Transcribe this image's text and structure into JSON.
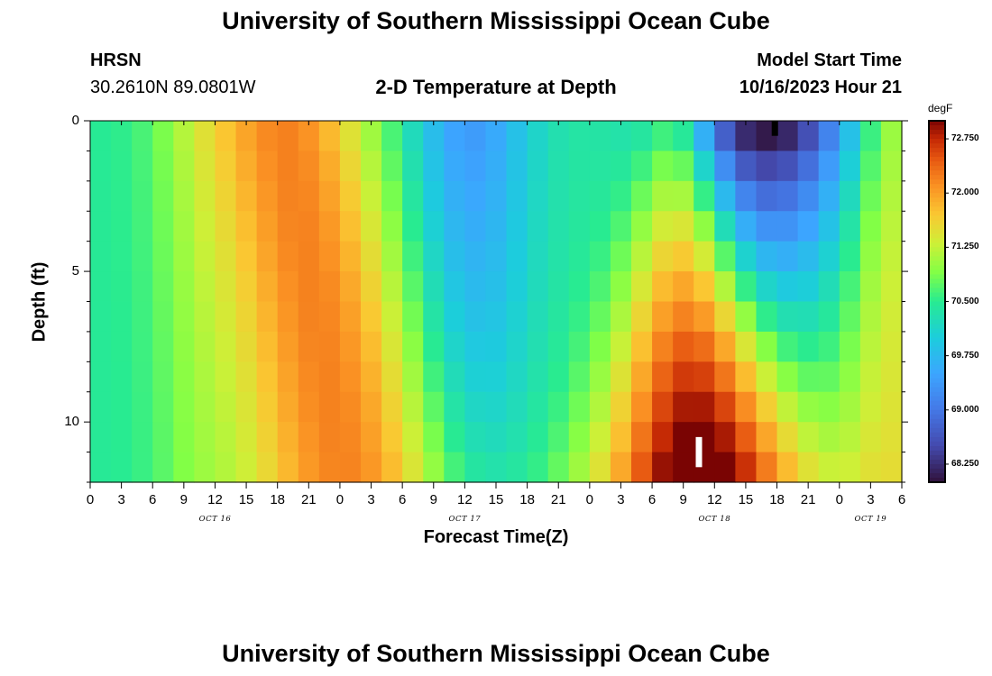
{
  "header": {
    "title": "University of Southern Mississippi Ocean Cube",
    "station": "HRSN",
    "coordinates": "30.2610N  89.0801W",
    "chart_title": "2-D Temperature at Depth",
    "model_start_label": "Model Start Time",
    "model_start_value": "10/16/2023 Hour 21",
    "footer_title": "University of Southern Mississippi Ocean Cube"
  },
  "chart_data": {
    "type": "heatmap",
    "title": "2-D Temperature at Depth",
    "xlabel": "Forecast Time(Z)",
    "ylabel": "Depth (ft)",
    "x_range_hours": [
      0,
      78
    ],
    "y_range_ft": [
      0,
      12
    ],
    "x_ticks": [
      {
        "h": 0,
        "label": "0"
      },
      {
        "h": 3,
        "label": "3"
      },
      {
        "h": 6,
        "label": "6"
      },
      {
        "h": 9,
        "label": "9"
      },
      {
        "h": 12,
        "label": "12"
      },
      {
        "h": 15,
        "label": "15"
      },
      {
        "h": 18,
        "label": "18"
      },
      {
        "h": 21,
        "label": "21"
      },
      {
        "h": 24,
        "label": "0"
      },
      {
        "h": 27,
        "label": "3"
      },
      {
        "h": 30,
        "label": "6"
      },
      {
        "h": 33,
        "label": "9"
      },
      {
        "h": 36,
        "label": "12"
      },
      {
        "h": 39,
        "label": "15"
      },
      {
        "h": 42,
        "label": "18"
      },
      {
        "h": 45,
        "label": "21"
      },
      {
        "h": 48,
        "label": "0"
      },
      {
        "h": 51,
        "label": "3"
      },
      {
        "h": 54,
        "label": "6"
      },
      {
        "h": 57,
        "label": "9"
      },
      {
        "h": 60,
        "label": "12"
      },
      {
        "h": 63,
        "label": "15"
      },
      {
        "h": 66,
        "label": "18"
      },
      {
        "h": 69,
        "label": "21"
      },
      {
        "h": 72,
        "label": "0"
      },
      {
        "h": 75,
        "label": "3"
      },
      {
        "h": 78,
        "label": "6"
      }
    ],
    "date_labels": [
      {
        "h": 12,
        "label": "OCT 16"
      },
      {
        "h": 36,
        "label": "OCT 17"
      },
      {
        "h": 60,
        "label": "OCT 18"
      },
      {
        "h": 75,
        "label": "OCT 19"
      }
    ],
    "y_ticks": [
      {
        "v": 0,
        "label": "0"
      },
      {
        "v": 5,
        "label": "5"
      },
      {
        "v": 10,
        "label": "10"
      }
    ],
    "colorbar": {
      "units": "degF",
      "range": [
        68.0,
        73.0
      ],
      "ticks": [
        "72.750",
        "72.000",
        "71.250",
        "70.500",
        "69.750",
        "69.000",
        "68.250"
      ]
    },
    "depth_rows_ft": [
      0.5,
      1.5,
      2.5,
      3.5,
      4.5,
      5.5,
      6.5,
      7.5,
      8.5,
      9.5,
      10.5,
      11.5
    ],
    "markers": [
      {
        "name": "surface-marker",
        "hour": 65.8,
        "depth_top": 0.0,
        "depth_bottom": 0.5,
        "color": "#000000"
      },
      {
        "name": "bottom-marker",
        "hour": 58.5,
        "depth_top": 10.5,
        "depth_bottom": 11.5,
        "color": "#ffffff"
      }
    ]
  }
}
